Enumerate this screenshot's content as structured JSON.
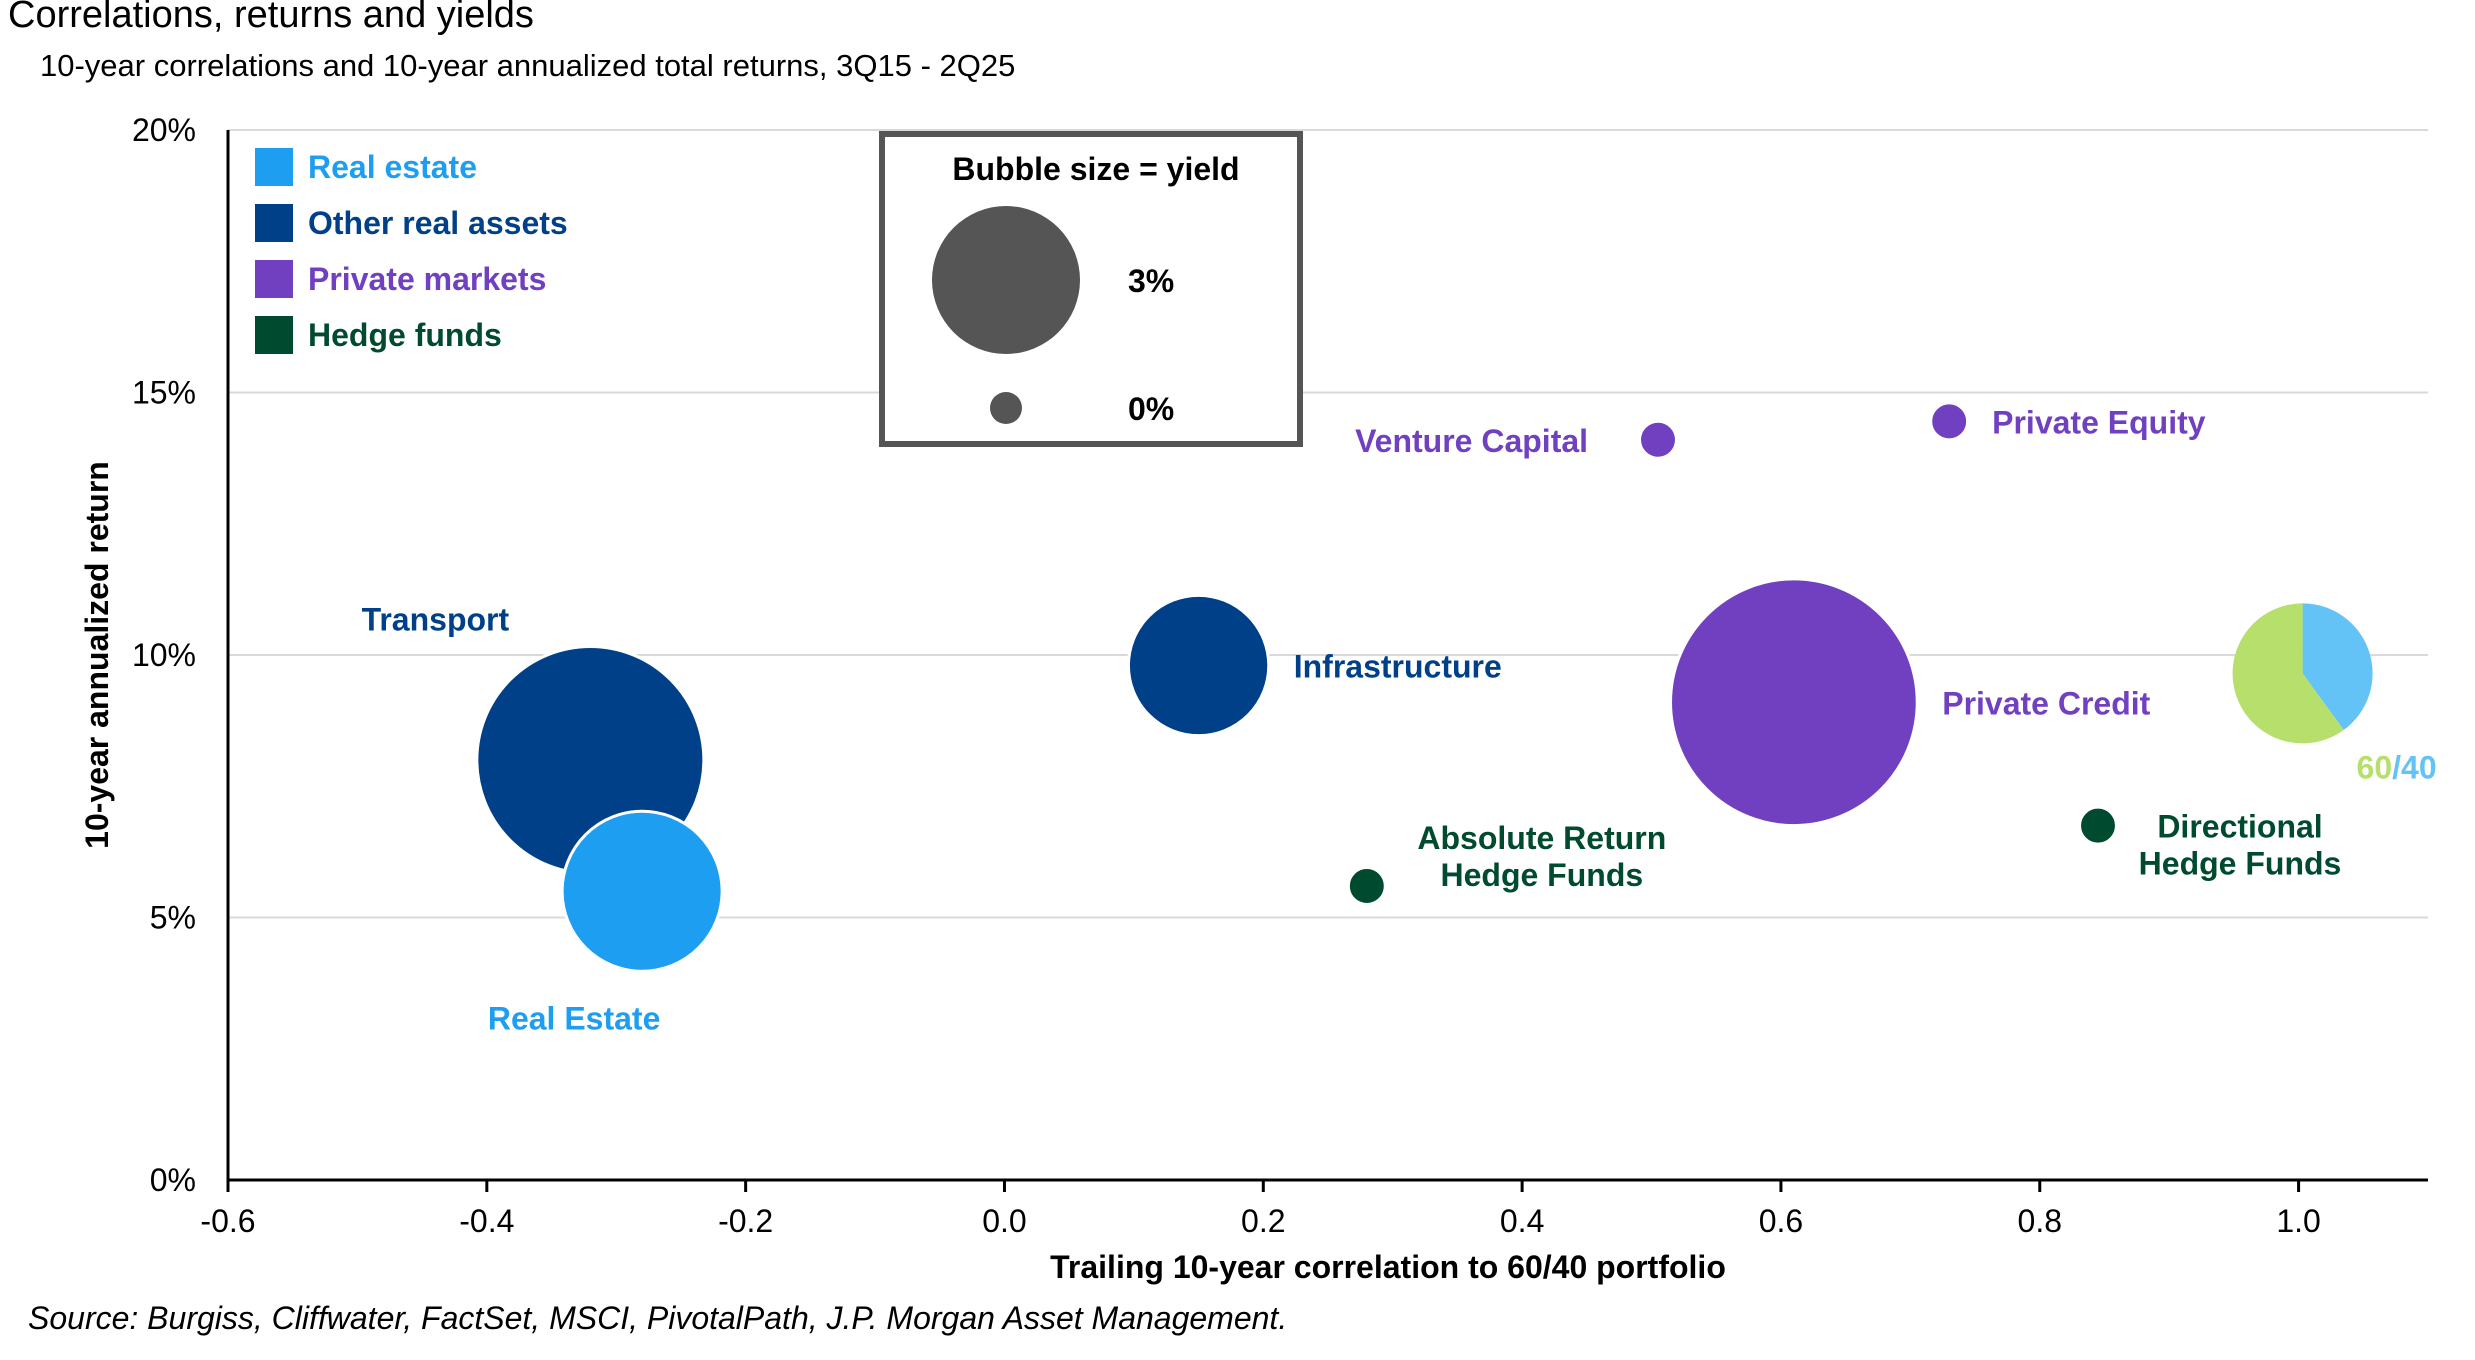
{
  "title": "Correlations, returns and yields",
  "subtitle": "10-year correlations and 10-year annualized total returns, 3Q15 - 2Q25",
  "source": "Source: Burgiss, Cliffwater, FactSet, MSCI, PivotalPath, J.P. Morgan Asset Management.",
  "colors": {
    "real_estate": "#1e9ef0",
    "other_real_assets": "#004088",
    "private_markets": "#7040c0",
    "hedge_funds": "#004b2f",
    "legend_gray": "#555555",
    "sixty": "#b6df6b",
    "forty": "#63c3f7",
    "grid": "#d9d9d9"
  },
  "chart_data": {
    "type": "bubble",
    "xlabel": "Trailing 10-year correlation to 60/40 portfolio",
    "ylabel": "10-year annualized return",
    "xlim": [
      -0.6,
      1.1
    ],
    "ylim": [
      0,
      20
    ],
    "x_ticks": [
      -0.6,
      -0.4,
      -0.2,
      0.0,
      0.2,
      0.4,
      0.6,
      0.8,
      1.0
    ],
    "x_tick_labels": [
      "-0.6",
      "-0.4",
      "-0.2",
      "0.0",
      "0.2",
      "0.4",
      "0.6",
      "0.8",
      "1.0"
    ],
    "y_ticks": [
      0,
      5,
      10,
      15,
      20
    ],
    "y_tick_labels": [
      "0%",
      "5%",
      "10%",
      "15%",
      "20%"
    ],
    "legend": [
      {
        "label": "Real estate",
        "category": "real_estate"
      },
      {
        "label": "Other real assets",
        "category": "other_real_assets"
      },
      {
        "label": "Private markets",
        "category": "private_markets"
      },
      {
        "label": "Hedge funds",
        "category": "hedge_funds"
      }
    ],
    "size_legend": {
      "title": "Bubble size = yield",
      "entries": [
        {
          "label": "3%",
          "yield": 3.0
        },
        {
          "label": "0%",
          "yield": 0.0
        }
      ]
    },
    "points": [
      {
        "name": "Transport",
        "category": "other_real_assets",
        "x": -0.32,
        "y": 8.0,
        "yield": 5.0,
        "label_pos": "above-left"
      },
      {
        "name": "Real Estate",
        "category": "real_estate",
        "x": -0.28,
        "y": 5.5,
        "yield": 3.3,
        "label_pos": "below"
      },
      {
        "name": "Infrastructure",
        "category": "other_real_assets",
        "x": 0.15,
        "y": 9.8,
        "yield": 2.8,
        "label_pos": "right"
      },
      {
        "name": "Absolute Return Hedge Funds",
        "label_lines": [
          "Absolute Return",
          "Hedge Funds"
        ],
        "category": "hedge_funds",
        "x": 0.28,
        "y": 5.6,
        "yield": 0.15,
        "label_pos": "above-right"
      },
      {
        "name": "Venture Capital",
        "category": "private_markets",
        "x": 0.505,
        "y": 14.1,
        "yield": 0.15,
        "label_pos": "left"
      },
      {
        "name": "Private Equity",
        "category": "private_markets",
        "x": 0.73,
        "y": 14.45,
        "yield": 0.15,
        "label_pos": "right"
      },
      {
        "name": "Private Credit",
        "category": "private_markets",
        "x": 0.61,
        "y": 9.1,
        "yield": 5.5,
        "label_pos": "right"
      },
      {
        "name": "Directional Hedge Funds",
        "label_lines": [
          "Directional",
          "Hedge Funds"
        ],
        "category": "hedge_funds",
        "x": 0.845,
        "y": 6.75,
        "yield": 0.15,
        "label_pos": "below-right"
      }
    ],
    "portfolio_60_40": {
      "x": 1.0,
      "y": 9.65,
      "yield": 2.5,
      "sixty_label": "60",
      "slash": "/",
      "forty_label": "40",
      "slices": [
        {
          "label": "60",
          "share": 0.6,
          "category": "sixty"
        },
        {
          "label": "40",
          "share": 0.4,
          "category": "forty"
        }
      ]
    }
  }
}
